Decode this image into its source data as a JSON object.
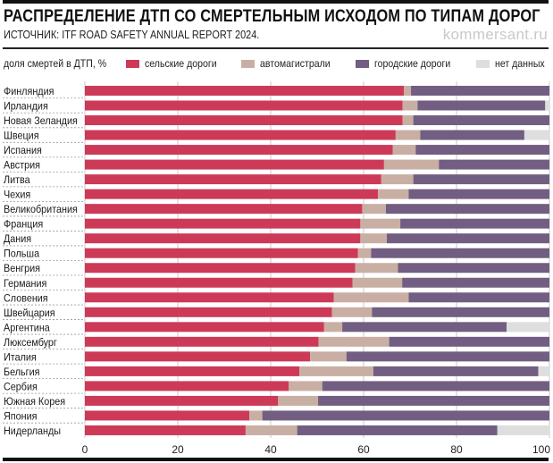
{
  "header": {
    "title": "РАСПРЕДЕЛЕНИЕ ДТП СО СМЕРТЕЛЬНЫМ ИСХОДОМ ПО ТИПАМ ДОРОГ",
    "source": "ИСТОЧНИК: ITF ROAD SAFETY ANNUAL REPORT 2024.",
    "brand": "kommersant.ru"
  },
  "legend": {
    "label": "доля смертей в ДТП, %",
    "items": [
      {
        "name": "сельские дороги",
        "color": "#cc3a57"
      },
      {
        "name": "автомагистрали",
        "color": "#c9afa3"
      },
      {
        "name": "городские дороги",
        "color": "#725e82"
      },
      {
        "name": "нет данных",
        "color": "#dedede"
      }
    ]
  },
  "chart_data": {
    "type": "bar",
    "orientation": "horizontal",
    "stacked": true,
    "title": "РАСПРЕДЕЛЕНИЕ ДТП СО СМЕРТЕЛЬНЫМ ИСХОДОМ ПО ТИПАМ ДОРОГ",
    "subtitle": "ИСТОЧНИК: ITF ROAD SAFETY ANNUAL REPORT 2024.",
    "xlabel": "доля смертей в ДТП, %",
    "ylabel": "",
    "xlim": [
      0,
      100
    ],
    "xticks": [
      0,
      20,
      40,
      60,
      80,
      100
    ],
    "grid": true,
    "legend_position": "top",
    "categories": [
      "Финляндия",
      "Ирландия",
      "Новая Зеландия",
      "Швеция",
      "Испания",
      "Австрия",
      "Литва",
      "Чехия",
      "Великобритания",
      "Франция",
      "Дания",
      "Польша",
      "Венгрия",
      "Германия",
      "Словения",
      "Швейцария",
      "Аргентина",
      "Люксембург",
      "Италия",
      "Бельгия",
      "Сербия",
      "Южная Корея",
      "Япония",
      "Нидерланды"
    ],
    "series": [
      {
        "name": "сельские дороги",
        "color": "#cc3a57",
        "values": [
          68.7,
          68.4,
          68.4,
          66.9,
          66.3,
          64.4,
          63.8,
          63.1,
          59.7,
          59.3,
          59.3,
          58.8,
          58.2,
          57.6,
          53.6,
          53.2,
          51.5,
          50.3,
          48.5,
          46.2,
          43.9,
          41.6,
          35.4,
          34.6
        ]
      },
      {
        "name": "автомагистрали",
        "color": "#c9afa3",
        "values": [
          1.5,
          3.2,
          2.3,
          5.3,
          4.9,
          11.8,
          6.9,
          6.6,
          5.1,
          8.6,
          5.7,
          2.8,
          9.2,
          10.7,
          16.1,
          8.6,
          3.9,
          15.2,
          7.8,
          15.9,
          7.2,
          8.6,
          2.8,
          11.1
        ]
      },
      {
        "name": "городские дороги",
        "color": "#725e82",
        "values": [
          29.8,
          27.5,
          29.3,
          22.4,
          28.8,
          23.8,
          29.3,
          30.3,
          35.2,
          32.1,
          35.0,
          38.4,
          32.6,
          31.7,
          30.3,
          38.2,
          35.4,
          34.5,
          43.7,
          35.5,
          48.9,
          49.8,
          61.8,
          43.1
        ]
      },
      {
        "name": "нет данных",
        "color": "#dedede",
        "values": [
          0,
          0.9,
          0,
          5.4,
          0,
          0,
          0,
          0,
          0,
          0,
          0,
          0,
          0,
          0,
          0,
          0,
          9.2,
          0,
          0,
          2.4,
          0,
          0,
          0,
          11.2
        ]
      }
    ]
  }
}
